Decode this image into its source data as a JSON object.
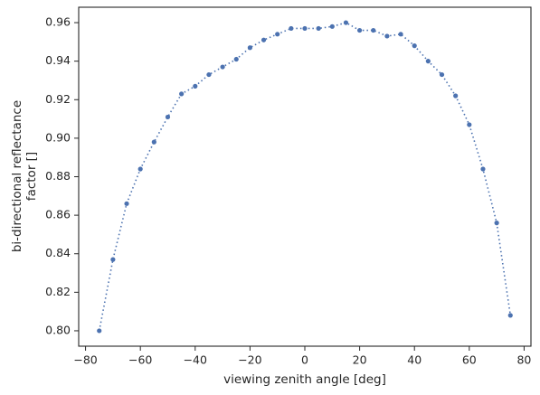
{
  "chart_data": {
    "type": "line",
    "xlabel": "viewing zenith angle [deg]",
    "ylabel": [
      "bi-directional reflectance",
      "factor []"
    ],
    "x": [
      -75,
      -70,
      -65,
      -60,
      -55,
      -50,
      -45,
      -40,
      -35,
      -30,
      -25,
      -20,
      -15,
      -10,
      -5,
      0,
      5,
      10,
      15,
      20,
      25,
      30,
      35,
      40,
      45,
      50,
      55,
      60,
      65,
      70,
      75
    ],
    "series": [
      {
        "color": "#4c72b0",
        "values": [
          0.8,
          0.837,
          0.866,
          0.884,
          0.898,
          0.911,
          0.923,
          0.927,
          0.933,
          0.937,
          0.941,
          0.947,
          0.951,
          0.954,
          0.957,
          0.957,
          0.957,
          0.958,
          0.96,
          0.956,
          0.956,
          0.953,
          0.954,
          0.948,
          0.94,
          0.933,
          0.922,
          0.907,
          0.884,
          0.856,
          0.808
        ]
      }
    ],
    "xlim": [
      -82.5,
      82.5
    ],
    "ylim": [
      0.792,
      0.968
    ],
    "xticks": [
      {
        "value": -80,
        "label": "−80"
      },
      {
        "value": -60,
        "label": "−60"
      },
      {
        "value": -40,
        "label": "−40"
      },
      {
        "value": -20,
        "label": "−20"
      },
      0,
      20,
      40,
      60,
      80
    ],
    "yticks": [
      {
        "value": 0.8,
        "label": "0.80"
      },
      {
        "value": 0.82,
        "label": "0.82"
      },
      {
        "value": 0.84,
        "label": "0.84"
      },
      {
        "value": 0.86,
        "label": "0.86"
      },
      {
        "value": 0.88,
        "label": "0.88"
      },
      {
        "value": 0.9,
        "label": "0.90"
      },
      {
        "value": 0.92,
        "label": "0.92"
      },
      {
        "value": 0.94,
        "label": "0.94"
      },
      {
        "value": 0.96,
        "label": "0.96"
      }
    ],
    "grid": false
  }
}
